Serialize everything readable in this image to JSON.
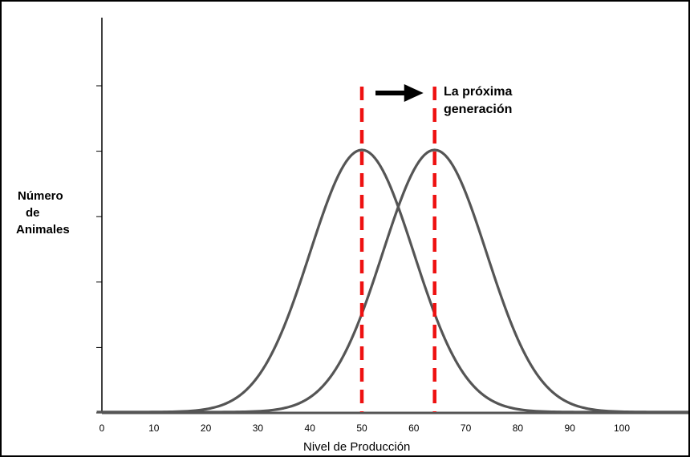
{
  "chart_data": {
    "type": "line",
    "title": "",
    "xlabel": "Nivel de Producción",
    "ylabel_lines": [
      "Número",
      "de",
      "Animales"
    ],
    "xlim": [
      0,
      100
    ],
    "xticks": [
      "0",
      "10",
      "20",
      "30",
      "40",
      "50",
      "60",
      "70",
      "80",
      "90",
      "100"
    ],
    "ylim": [
      0,
      4
    ],
    "ytick_count": 6,
    "grid": "horizontal, white",
    "series": [
      {
        "mean": 50,
        "sd": 10,
        "peak": 4,
        "color": "#555555"
      },
      {
        "mean": 64,
        "sd": 10,
        "peak": 4,
        "color": "#555555"
      }
    ],
    "vlines": [
      {
        "x": 50,
        "style": "dashed",
        "color": "#ee1111"
      },
      {
        "x": 64,
        "style": "dashed",
        "color": "#ee1111"
      }
    ],
    "annotation": {
      "lines": [
        "La próxima",
        "generación"
      ],
      "arrow": "right",
      "arrow_from": 50,
      "arrow_to": 64
    },
    "colors": {
      "grid": "#ffffff",
      "curve": "#555555",
      "dashed": "#ee1111",
      "arrow": "#000000"
    }
  }
}
